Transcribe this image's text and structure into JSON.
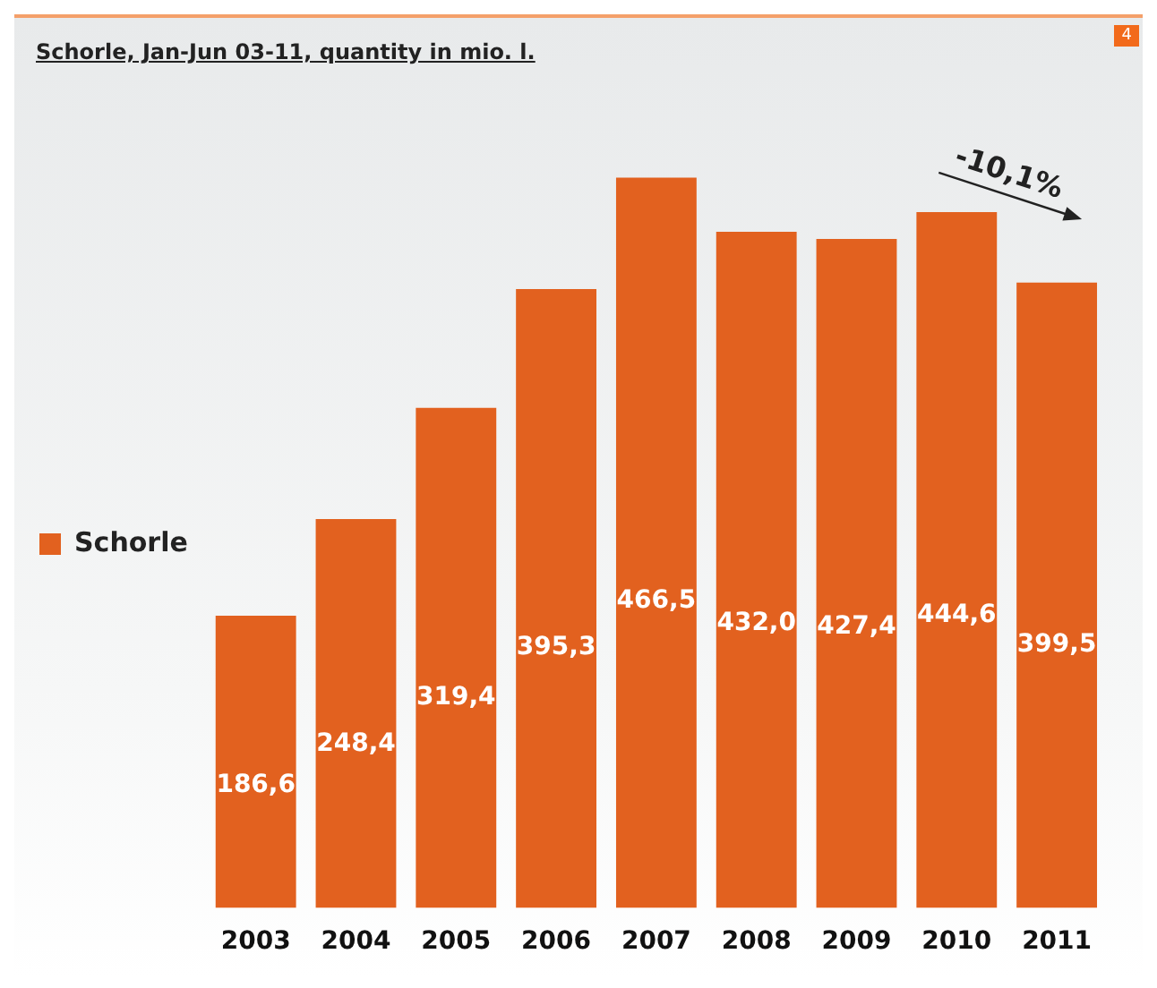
{
  "chart_data": {
    "type": "bar",
    "title": "Schorle, Jan-Jun 03-11, quantity in mio. l.",
    "categories": [
      "2003",
      "2004",
      "2005",
      "2006",
      "2007",
      "2008",
      "2009",
      "2010",
      "2011"
    ],
    "series": [
      {
        "name": "Schorle",
        "color": "#e2611f",
        "values": [
          186.6,
          248.4,
          319.4,
          395.3,
          466.5,
          432.0,
          427.4,
          444.6,
          399.5
        ],
        "value_labels": [
          "186,6",
          "248,4",
          "319,4",
          "395,3",
          "466,5",
          "432,0",
          "427,4",
          "444,6",
          "399,5"
        ]
      }
    ],
    "annotations": [
      {
        "text": "-10,1%",
        "x": "2011",
        "y": 399.5
      },
      "4"
    ],
    "legend": "left",
    "grid": false
  }
}
